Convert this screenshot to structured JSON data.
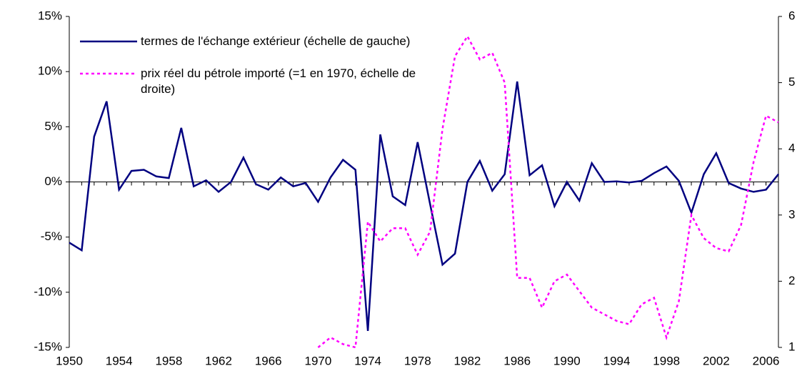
{
  "chart_data": {
    "type": "line",
    "x": [
      1950,
      1951,
      1952,
      1953,
      1954,
      1955,
      1956,
      1957,
      1958,
      1959,
      1960,
      1961,
      1962,
      1963,
      1964,
      1965,
      1966,
      1967,
      1968,
      1969,
      1970,
      1971,
      1972,
      1973,
      1974,
      1975,
      1976,
      1977,
      1978,
      1979,
      1980,
      1981,
      1982,
      1983,
      1984,
      1985,
      1986,
      1987,
      1988,
      1989,
      1990,
      1991,
      1992,
      1993,
      1994,
      1995,
      1996,
      1997,
      1998,
      1999,
      2000,
      2001,
      2002,
      2003,
      2004,
      2005,
      2006,
      2007
    ],
    "series": [
      {
        "name": "termes de l'échange extérieur (échelle de gauche)",
        "color": "#000080",
        "axis": "y",
        "values": [
          -5.5,
          -6.2,
          4.1,
          7.3,
          -0.7,
          1.0,
          1.1,
          0.5,
          0.35,
          4.9,
          -0.4,
          0.15,
          -0.9,
          0,
          2.2,
          -0.2,
          -0.7,
          0.4,
          -0.4,
          -0.1,
          -1.8,
          0.4,
          2.0,
          1.1,
          -13.5,
          4.3,
          -1.3,
          -2.1,
          3.6,
          -2.0,
          -7.5,
          -6.5,
          0,
          1.9,
          -0.8,
          0.7,
          9.1,
          0.6,
          1.5,
          -2.2,
          0,
          -1.7,
          1.7,
          0,
          0.05,
          -0.05,
          0.1,
          0.8,
          1.4,
          0.1,
          -2.8,
          0.7,
          2.6,
          -0.1,
          -0.6,
          -0.9,
          -0.7,
          0.7
        ]
      },
      {
        "name": "prix réel du pétrole importé (=1 en 1970, échelle de droite)",
        "color": "#ff00ff",
        "axis": "y2",
        "values": [
          null,
          null,
          null,
          null,
          null,
          null,
          null,
          null,
          null,
          null,
          null,
          null,
          null,
          null,
          null,
          null,
          null,
          null,
          null,
          null,
          1.0,
          1.15,
          1.05,
          1.0,
          2.9,
          2.6,
          2.8,
          2.8,
          2.4,
          2.75,
          4.3,
          5.4,
          5.7,
          5.35,
          5.45,
          5.0,
          2.05,
          2.05,
          1.6,
          2.0,
          2.1,
          1.85,
          1.6,
          1.5,
          1.4,
          1.35,
          1.65,
          1.75,
          1.15,
          1.7,
          3.0,
          2.65,
          2.5,
          2.45,
          2.85,
          3.8,
          4.5,
          4.4
        ]
      }
    ],
    "xlim": [
      1950,
      2007
    ],
    "xticks": [
      1950,
      1954,
      1958,
      1962,
      1966,
      1970,
      1974,
      1978,
      1982,
      1986,
      1990,
      1994,
      1998,
      2002,
      2006
    ],
    "ylim": [
      -15,
      15
    ],
    "yticks": [
      {
        "value": -15,
        "label": "-15%"
      },
      {
        "value": -10,
        "label": "-10%"
      },
      {
        "value": -5,
        "label": "-5%"
      },
      {
        "value": 0,
        "label": "0%"
      },
      {
        "value": 5,
        "label": "5%"
      },
      {
        "value": 10,
        "label": "10%"
      },
      {
        "value": 15,
        "label": "15%"
      }
    ],
    "y2lim": [
      1,
      6
    ],
    "y2ticks": [
      1,
      2,
      3,
      4,
      5,
      6
    ],
    "legend": "top-left",
    "grid": false
  }
}
